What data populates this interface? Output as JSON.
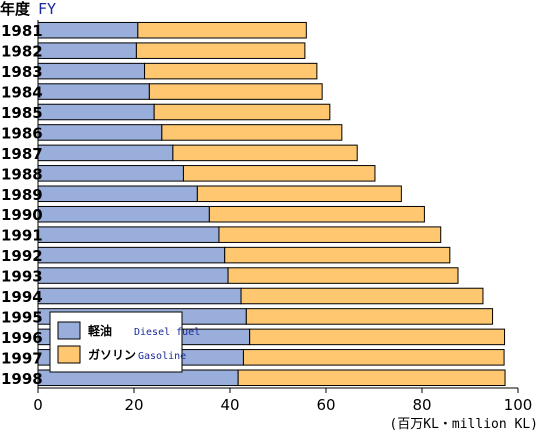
{
  "chart_data": {
    "type": "bar",
    "orientation": "horizontal",
    "stacked": true,
    "title": {
      "jp": "年度",
      "en": "FY"
    },
    "unit_label": "(百万KL・million KL)",
    "categories": [
      "1981",
      "1982",
      "1983",
      "1984",
      "1985",
      "1986",
      "1987",
      "1988",
      "1989",
      "1990",
      "1991",
      "1992",
      "1993",
      "1994",
      "1995",
      "1996",
      "1997",
      "1998"
    ],
    "series": [
      {
        "name_jp": "軽油",
        "name_en": "Diesel fuel",
        "color": "#9aaedb",
        "values": [
          20.8,
          20.5,
          22.2,
          23.2,
          24.2,
          25.8,
          28.1,
          30.3,
          33.2,
          35.7,
          37.7,
          38.9,
          39.6,
          42.3,
          43.4,
          44.1,
          42.8,
          41.7
        ]
      },
      {
        "name_jp": "ガソリン",
        "name_en": "Gasoline",
        "color": "#ffc870",
        "values": [
          35.1,
          35.1,
          35.9,
          36.0,
          36.6,
          37.5,
          38.4,
          39.9,
          42.5,
          44.8,
          46.2,
          46.9,
          47.9,
          50.4,
          51.3,
          53.1,
          54.3,
          55.6
        ]
      }
    ],
    "xlim": [
      0,
      100
    ],
    "xticks": [
      0,
      20,
      40,
      60,
      80,
      100
    ],
    "grid": false,
    "legend_position": "bottom-left"
  }
}
